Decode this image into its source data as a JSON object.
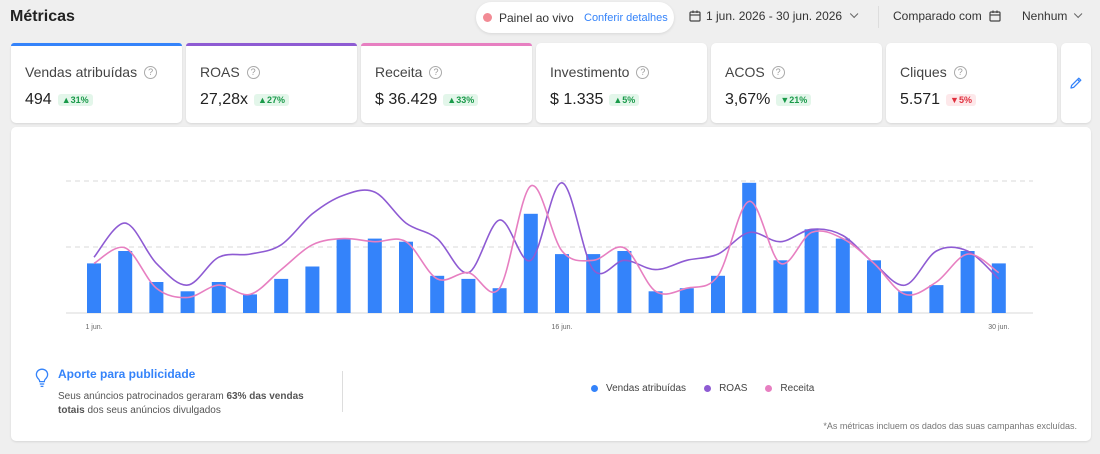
{
  "header": {
    "title": "Métricas",
    "live_label": "Painel ao vivo",
    "live_link": "Conferir detalhes",
    "date_range": "1 jun. 2026 - 30 jun. 2026",
    "compare_label": "Comparado com",
    "compare_value": "Nenhum"
  },
  "kpis": [
    {
      "label": "Vendas atribuídas",
      "value": "494",
      "change": "▲31%",
      "direction": "up",
      "accent": "#3483fa"
    },
    {
      "label": "ROAS",
      "value": "27,28x",
      "change": "▲27%",
      "direction": "up",
      "accent": "#8e5bd3"
    },
    {
      "label": "Receita",
      "value": "$ 36.429",
      "change": "▲33%",
      "direction": "up",
      "accent": "#e77fc1"
    },
    {
      "label": "Investimento",
      "value": "$ 1.335",
      "change": "▲5%",
      "direction": "up",
      "accent": ""
    },
    {
      "label": "ACOS",
      "value": "3,67%",
      "change": "▼21%",
      "direction": "up",
      "accent": ""
    },
    {
      "label": "Cliques",
      "value": "5.571",
      "change": "▼5%",
      "direction": "down",
      "accent": ""
    }
  ],
  "insight": {
    "title": "Aporte para publicidade",
    "text_before": "Seus anúncios patrocinados geraram ",
    "text_highlight": "63% das vendas totais",
    "text_after": " dos seus anúncios divulgados"
  },
  "footnote": "*As métricas incluem os dados das suas campanhas excluídas.",
  "colors": {
    "bars": "#3483fa",
    "roas": "#8e5bd3",
    "receita": "#e77fc1"
  },
  "chart_data": {
    "type": "bar",
    "x": [
      1,
      2,
      3,
      4,
      5,
      6,
      7,
      8,
      9,
      10,
      11,
      12,
      13,
      14,
      15,
      16,
      17,
      18,
      19,
      20,
      21,
      22,
      23,
      24,
      25,
      26,
      27,
      28,
      29,
      30
    ],
    "x_tick_labels": [
      "1 jun.",
      "16 jun.",
      "30 jun."
    ],
    "grid": true,
    "legend_placement": "bottom",
    "series": [
      {
        "name": "Vendas atribuídas",
        "type": "bar",
        "values": [
          16,
          20,
          10,
          7,
          10,
          6,
          11,
          15,
          24,
          24,
          23,
          12,
          11,
          8,
          32,
          19,
          19,
          20,
          7,
          8,
          12,
          42,
          17,
          27,
          24,
          17,
          7,
          9,
          20,
          16
        ]
      },
      {
        "name": "ROAS",
        "type": "line",
        "values": [
          18,
          29,
          16,
          9,
          18,
          19,
          22,
          32,
          38,
          39,
          29,
          24,
          13,
          30,
          17,
          42,
          14,
          17,
          14,
          17,
          19,
          26,
          23,
          27,
          25,
          16,
          9,
          20,
          20,
          11
        ]
      },
      {
        "name": "Receita",
        "type": "line",
        "values": [
          16,
          21,
          8,
          5,
          9,
          6,
          14,
          22,
          24,
          23,
          23,
          11,
          13,
          8,
          41,
          20,
          17,
          21,
          7,
          8,
          12,
          36,
          16,
          26,
          24,
          16,
          6,
          10,
          19,
          13
        ]
      }
    ]
  }
}
